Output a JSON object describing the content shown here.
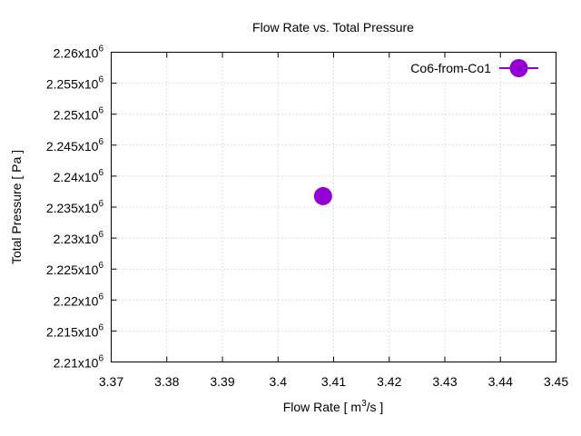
{
  "chart_data": {
    "type": "scatter",
    "title": "Flow Rate vs. Total Pressure",
    "xlabel": "Flow Rate [ m",
    "xlabel_sup": "3",
    "xlabel_tail": "/s ]",
    "ylabel": "Total Pressure [ Pa ]",
    "xlim": [
      3.37,
      3.45
    ],
    "ylim": [
      2210000,
      2260000
    ],
    "grid": true,
    "legend_position": "top-right",
    "x_ticks": [
      "3.37",
      "3.38",
      "3.39",
      "3.4",
      "3.41",
      "3.42",
      "3.43",
      "3.44",
      "3.45"
    ],
    "x_tick_values": [
      3.37,
      3.38,
      3.39,
      3.4,
      3.41,
      3.42,
      3.43,
      3.44,
      3.45
    ],
    "y_ticks": [
      {
        "mant": "2.21x10",
        "exp": "6",
        "value": 2210000
      },
      {
        "mant": "2.215x10",
        "exp": "6",
        "value": 2215000
      },
      {
        "mant": "2.22x10",
        "exp": "6",
        "value": 2220000
      },
      {
        "mant": "2.225x10",
        "exp": "6",
        "value": 2225000
      },
      {
        "mant": "2.23x10",
        "exp": "6",
        "value": 2230000
      },
      {
        "mant": "2.235x10",
        "exp": "6",
        "value": 2235000
      },
      {
        "mant": "2.24x10",
        "exp": "6",
        "value": 2240000
      },
      {
        "mant": "2.245x10",
        "exp": "6",
        "value": 2245000
      },
      {
        "mant": "2.25x10",
        "exp": "6",
        "value": 2250000
      },
      {
        "mant": "2.255x10",
        "exp": "6",
        "value": 2255000
      },
      {
        "mant": "2.26x10",
        "exp": "6",
        "value": 2260000
      }
    ],
    "series": [
      {
        "name": "Co6-from-Co1",
        "color": "#9400d3",
        "points": [
          {
            "x": 3.4081,
            "y": 2236770
          }
        ]
      }
    ]
  }
}
